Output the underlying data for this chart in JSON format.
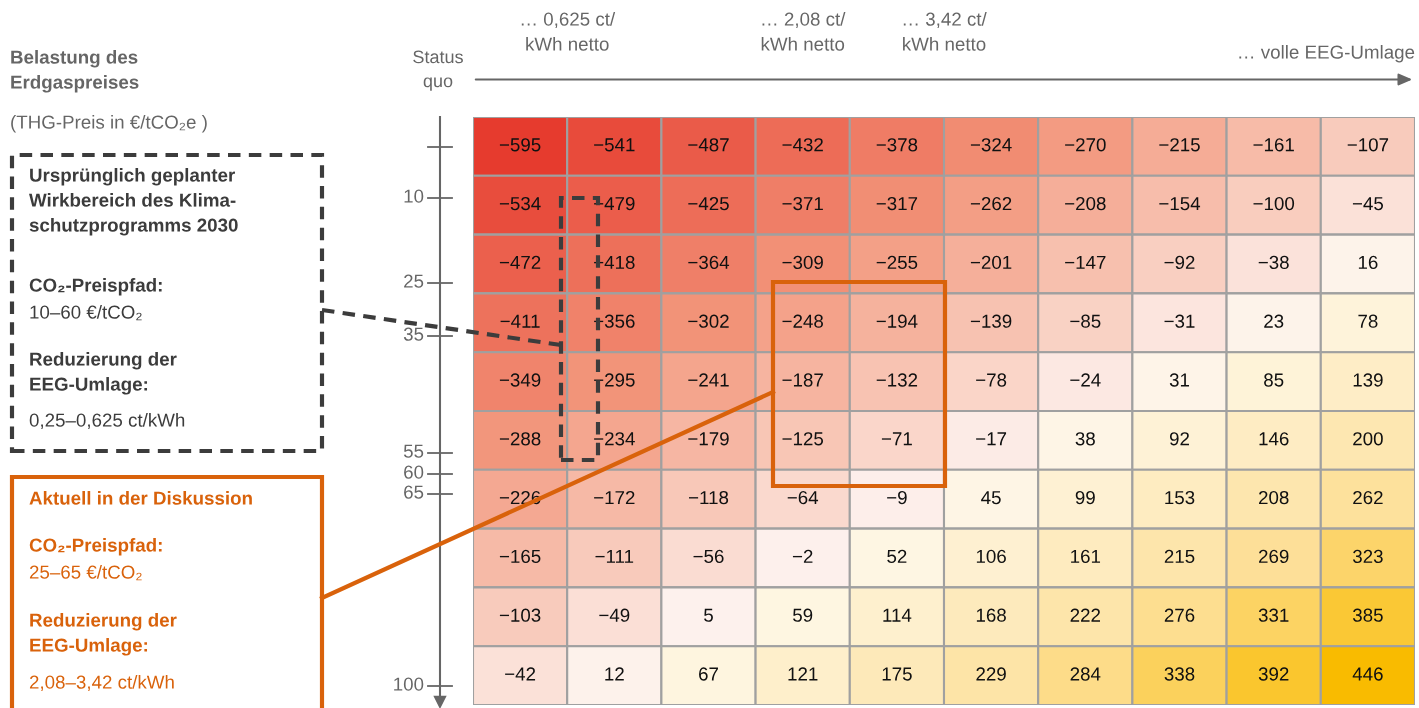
{
  "chart_data": {
    "type": "heatmap",
    "categories": [
      null,
      null,
      null,
      null,
      null,
      null,
      null,
      null,
      null,
      null
    ],
    "y_categories": [
      null,
      null,
      null,
      null,
      null,
      null,
      null,
      null,
      null,
      null
    ],
    "cells": [
      [
        -595,
        -541,
        -487,
        -432,
        -378,
        -324,
        -270,
        -215,
        -161,
        -107
      ],
      [
        -534,
        -479,
        -425,
        -371,
        -317,
        -262,
        -208,
        -154,
        -100,
        -45
      ],
      [
        -472,
        -418,
        -364,
        -309,
        -255,
        -201,
        -147,
        -92,
        -38,
        16
      ],
      [
        -411,
        -356,
        -302,
        -248,
        -194,
        -139,
        -85,
        -31,
        23,
        78
      ],
      [
        -349,
        -295,
        -241,
        -187,
        -132,
        -78,
        -24,
        31,
        85,
        139
      ],
      [
        -288,
        -234,
        -179,
        -125,
        -71,
        -17,
        38,
        92,
        146,
        200
      ],
      [
        -226,
        -172,
        -118,
        -64,
        -9,
        45,
        99,
        153,
        208,
        262
      ],
      [
        -165,
        -111,
        -56,
        -2,
        52,
        106,
        161,
        215,
        269,
        323
      ],
      [
        -103,
        -49,
        5,
        59,
        114,
        168,
        222,
        276,
        331,
        385
      ],
      [
        -42,
        12,
        67,
        121,
        175,
        229,
        284,
        338,
        392,
        446
      ]
    ],
    "data_labels": true,
    "annotations": [
      "Status\nquo",
      "… 0,625 ct/\nkWh netto",
      "… 2,08 ct/\nkWh netto",
      "… 3,42 ct/\nkWh netto",
      "… volle EEG-Umlage",
      "Belastung des\nErdgaspreises",
      "(THG-Preis in €/tCO₂e )",
      "Ursprünglich geplanter\nWirkbereich des Klima-\nschutzprogramms 2030",
      "CO₂-Preispfad:",
      "10–60 €/tCO₂",
      "Reduzierung der\nEEG-Umlage:",
      "0,25–0,625 ct/kWh",
      "Aktuell in der Diskussion",
      "CO₂-Preispfad:",
      "25–65 €/tCO₂",
      "Reduzierung der\nEEG-Umlage:",
      "2,08–3,42 ct/kWh",
      "10",
      "25",
      "35",
      "55",
      "60",
      "65",
      "100"
    ],
    "grid": false
  }
}
